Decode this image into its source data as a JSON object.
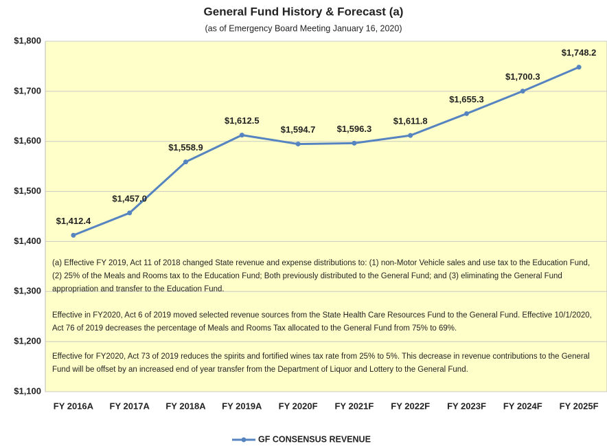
{
  "chart_data": {
    "type": "line",
    "title": "General Fund History & Forecast (a)",
    "subtitle": "(as of Emergency Board Meeting January 16, 2020)",
    "categories": [
      "FY 2016A",
      "FY 2017A",
      "FY 2018A",
      "FY 2019A",
      "FY 2020F",
      "FY 2021F",
      "FY 2022F",
      "FY 2023F",
      "FY 2024F",
      "FY 2025F"
    ],
    "series": [
      {
        "name": "GF CONSENSUS REVENUE",
        "color": "#5584c0",
        "values": [
          1412.4,
          1457.0,
          1558.9,
          1612.5,
          1594.7,
          1596.3,
          1611.8,
          1655.3,
          1700.3,
          1748.2
        ],
        "value_labels": [
          "$1,412.4",
          "$1,457.0",
          "$1,558.9",
          "$1,612.5",
          "$1,594.7",
          "$1,596.3",
          "$1,611.8",
          "$1,655.3",
          "$1,700.3",
          "$1,748.2"
        ]
      }
    ],
    "ylim": [
      1100,
      1800
    ],
    "yticks": [
      {
        "value": 1100,
        "label": "$1,100"
      },
      {
        "value": 1200,
        "label": "$1,200"
      },
      {
        "value": 1300,
        "label": "$1,300"
      },
      {
        "value": 1400,
        "label": "$1,400"
      },
      {
        "value": 1500,
        "label": "$1,500"
      },
      {
        "value": 1600,
        "label": "$1,600"
      },
      {
        "value": 1700,
        "label": "$1,700"
      },
      {
        "value": 1800,
        "label": "$1,800"
      }
    ],
    "grid": true,
    "legend": "bottom",
    "notes": [
      "(a) Effective FY 2019, Act 11 of 2018 changed State revenue and expense distributions to: (1) non-Motor Vehicle sales and use tax to the Education Fund, (2) 25% of the Meals and Rooms tax to the Education Fund; Both previously distributed to the General Fund; and (3) eliminating the General Fund appropriation and transfer to the Education Fund.",
      "Effective in FY2020, Act 6 of 2019 moved selected revenue sources from the State Health Care Resources Fund to the General Fund. Effective 10/1/2020, Act 76 of 2019 decreases the percentage of Meals and Rooms Tax allocated to the General Fund from 75% to 69%.",
      "Effective for FY2020, Act 73 of 2019 reduces the spirits and fortified wines tax rate from 25% to 5%. This decrease in revenue contributions to the General Fund will be offset by an increased end of year transfer from the Department of Liquor and Lottery to the General Fund."
    ]
  }
}
